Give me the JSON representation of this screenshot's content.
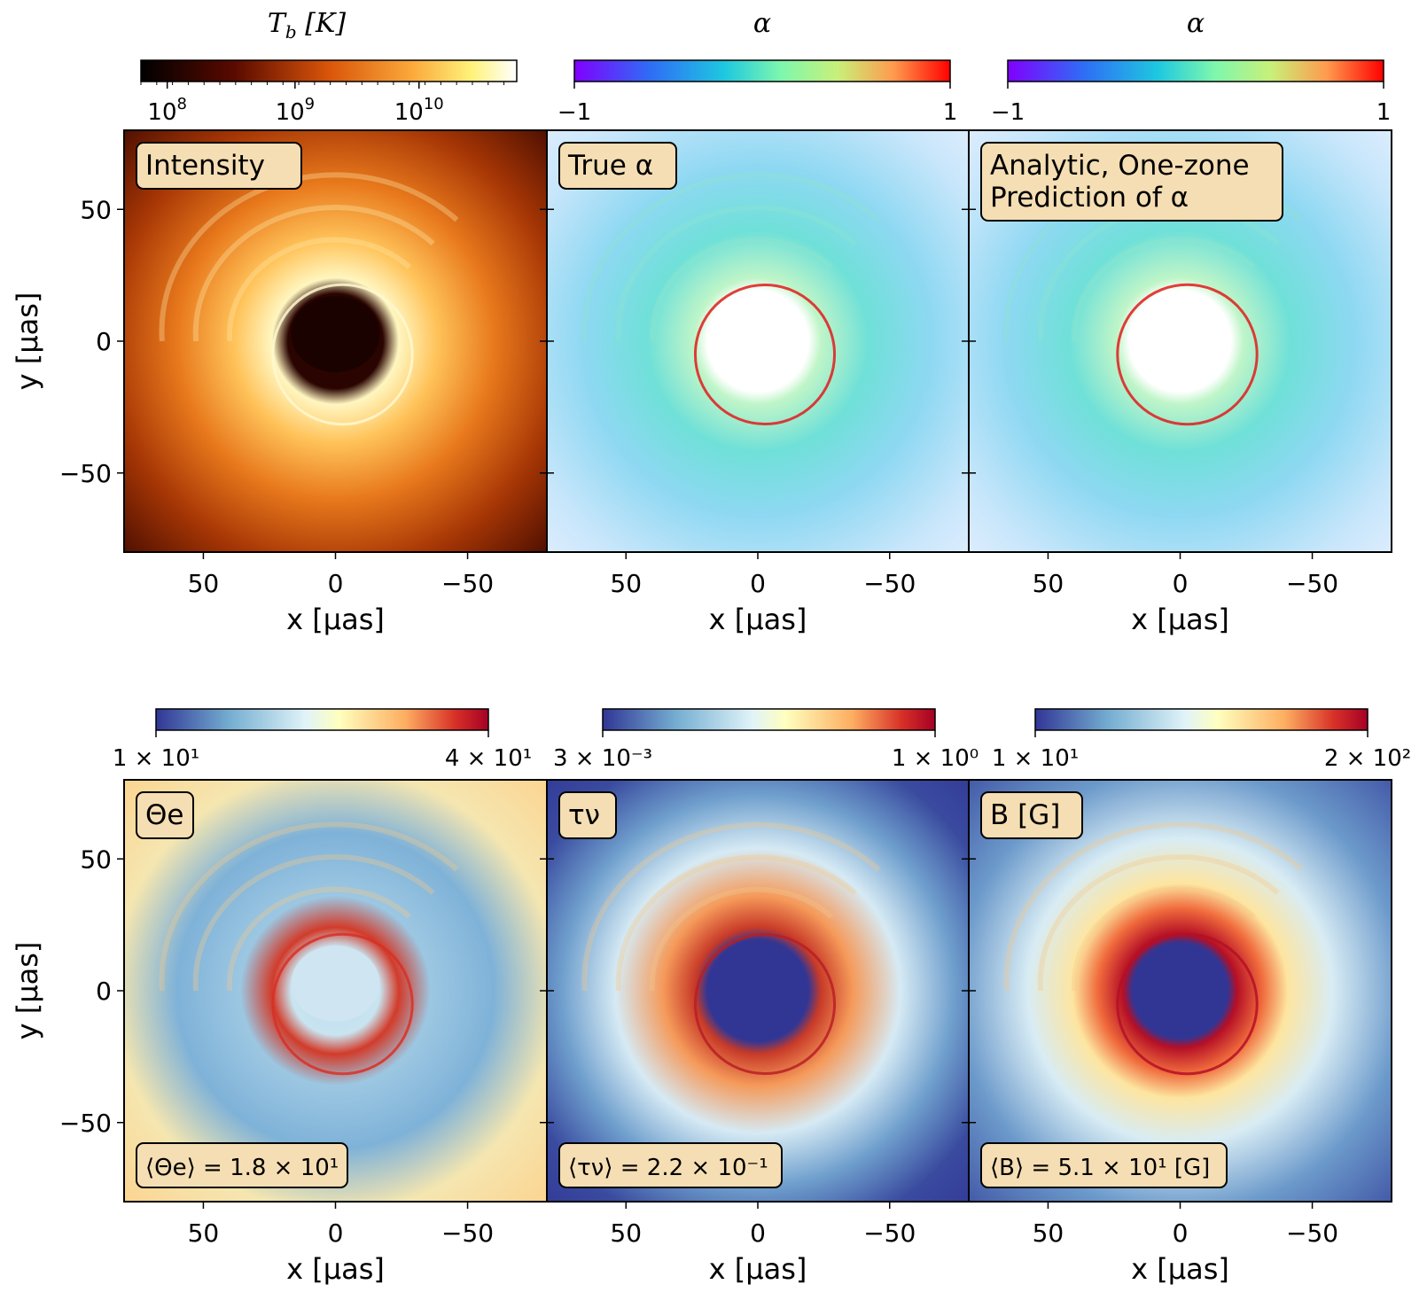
{
  "chart_data": [
    {
      "type": "heatmap",
      "panel": "top-left",
      "label": "Intensity",
      "colorbar": {
        "title_main": "T",
        "title_sub": "b",
        "title_unit": "[K]",
        "scale": "log",
        "cmap": "afmhot",
        "ticks": [
          {
            "base": "10",
            "exp": "8"
          },
          {
            "base": "10",
            "exp": "9"
          },
          {
            "base": "10",
            "exp": "10"
          }
        ]
      },
      "xlabel": "x [μas]",
      "ylabel": "y [μas]",
      "xlim": [
        80,
        -80
      ],
      "ylim": [
        -80,
        80
      ],
      "xticks": [
        "50",
        "0",
        "−50"
      ],
      "yticks": [
        "50",
        "0",
        "−50"
      ]
    },
    {
      "type": "heatmap",
      "panel": "top-middle",
      "label": "True α",
      "colorbar": {
        "title": "α",
        "cmap": "rainbow",
        "min_label": "−1",
        "max_label": "1",
        "range": [
          -1,
          1
        ]
      },
      "xlabel": "x [μas]",
      "xlim": [
        80,
        -80
      ],
      "ylim": [
        -80,
        80
      ],
      "xticks": [
        "50",
        "0",
        "−50"
      ]
    },
    {
      "type": "heatmap",
      "panel": "top-right",
      "label_line1": "Analytic, One-zone",
      "label_line2": "Prediction of α",
      "colorbar": {
        "title": "α",
        "cmap": "rainbow",
        "min_label": "−1",
        "max_label": "1",
        "range": [
          -1,
          1
        ]
      },
      "xlabel": "x [μas]",
      "xlim": [
        80,
        -80
      ],
      "ylim": [
        -80,
        80
      ],
      "xticks": [
        "50",
        "0",
        "−50"
      ]
    },
    {
      "type": "heatmap",
      "panel": "bottom-left",
      "label": "Θe",
      "colorbar": {
        "cmap": "RdYlBu_r",
        "min_label": "1 × 10¹",
        "max_label": "4 × 10¹",
        "range": [
          10,
          40
        ]
      },
      "annotation": "⟨Θe⟩ = 1.8 × 10¹",
      "xlabel": "x [μas]",
      "ylabel": "y [μas]",
      "xlim": [
        80,
        -80
      ],
      "ylim": [
        -80,
        80
      ],
      "xticks": [
        "50",
        "0",
        "−50"
      ],
      "yticks": [
        "50",
        "0",
        "−50"
      ]
    },
    {
      "type": "heatmap",
      "panel": "bottom-middle",
      "label": "τν",
      "colorbar": {
        "cmap": "RdYlBu_r",
        "min_label": "3 × 10⁻³",
        "max_label": "1 × 10⁰",
        "range": [
          0.003,
          1
        ]
      },
      "annotation": "⟨τν⟩ = 2.2 × 10⁻¹",
      "xlabel": "x [μas]",
      "xlim": [
        80,
        -80
      ],
      "ylim": [
        -80,
        80
      ],
      "xticks": [
        "50",
        "0",
        "−50"
      ]
    },
    {
      "type": "heatmap",
      "panel": "bottom-right",
      "label": "B [G]",
      "colorbar": {
        "cmap": "RdYlBu_r",
        "min_label": "1 × 10¹",
        "max_label": "2 × 10²",
        "range": [
          10,
          200
        ]
      },
      "annotation": "⟨B⟩ = 5.1 × 10¹ [G]",
      "xlabel": "x [μas]",
      "xlim": [
        80,
        -80
      ],
      "ylim": [
        -80,
        80
      ],
      "xticks": [
        "50",
        "0",
        "−50"
      ]
    }
  ]
}
